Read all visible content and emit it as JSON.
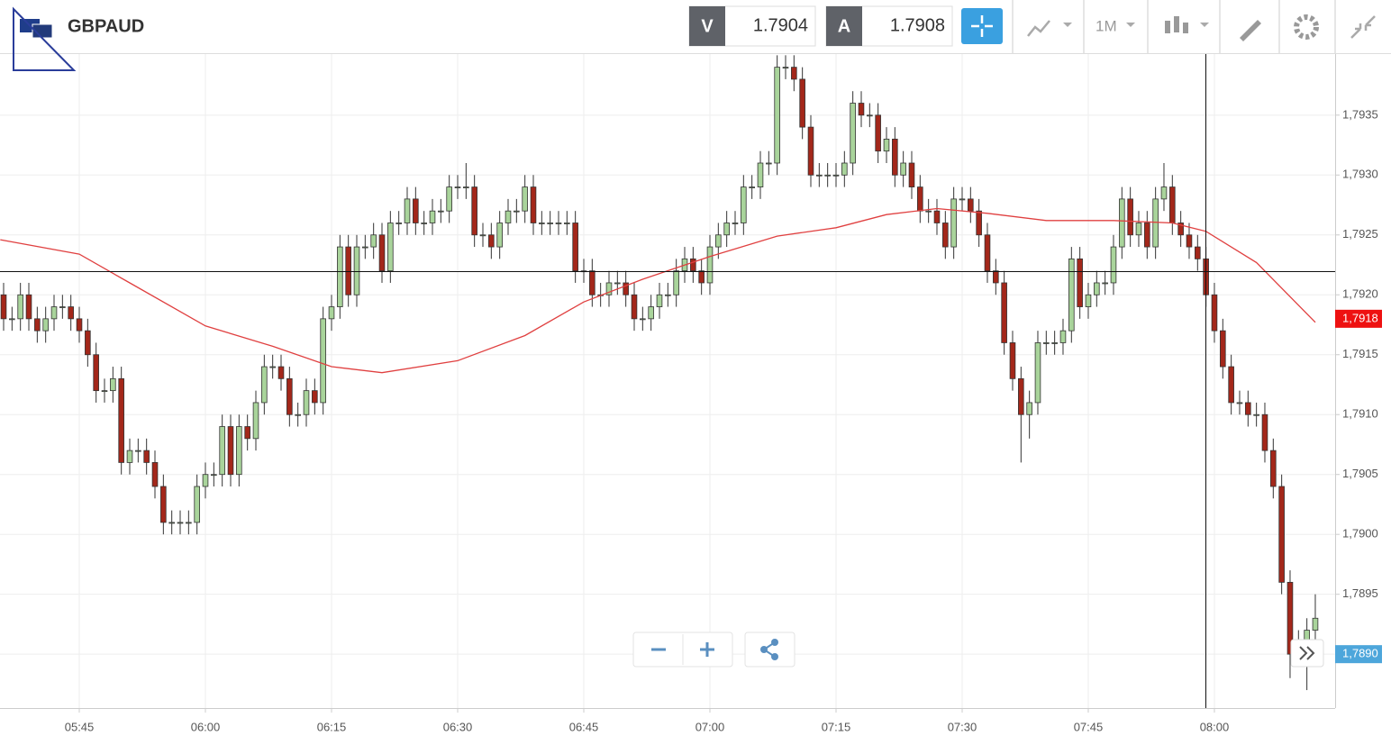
{
  "header": {
    "title": "GBPAUD",
    "bid_label": "V",
    "bid": "1.7904",
    "ask_label": "A",
    "ask": "1.7908",
    "interval": "1M"
  },
  "chart_data": {
    "type": "candlestick",
    "up_color": "#a9d49b",
    "down_color": "#a3271a",
    "xlim": [
      335.57,
      494.36
    ],
    "ylim": [
      1.78855,
      1.79401
    ],
    "grid": true,
    "xticks": [
      {
        "value": 345,
        "label": "05:45"
      },
      {
        "value": 360,
        "label": "06:00"
      },
      {
        "value": 375,
        "label": "06:15"
      },
      {
        "value": 390,
        "label": "06:30"
      },
      {
        "value": 405,
        "label": "06:45"
      },
      {
        "value": 420,
        "label": "07:00"
      },
      {
        "value": 435,
        "label": "07:15"
      },
      {
        "value": 450,
        "label": "07:30"
      },
      {
        "value": 465,
        "label": "07:45"
      },
      {
        "value": 480,
        "label": "08:00"
      }
    ],
    "yticks": [
      {
        "value": 1.7935,
        "label": "1,7935"
      },
      {
        "value": 1.793,
        "label": "1,7930"
      },
      {
        "value": 1.7925,
        "label": "1,7925"
      },
      {
        "value": 1.792,
        "label": "1,7920"
      },
      {
        "value": 1.7915,
        "label": "1,7915"
      },
      {
        "value": 1.791,
        "label": "1,7910"
      },
      {
        "value": 1.7905,
        "label": "1,7905"
      },
      {
        "value": 1.79,
        "label": "1,7900"
      },
      {
        "value": 1.7895,
        "label": "1,7895"
      },
      {
        "value": 1.789,
        "label": "1,7890"
      }
    ],
    "price_badges": [
      {
        "value": 1.7918,
        "label": "1,7918",
        "color": "#ee1111"
      },
      {
        "value": 1.789,
        "label": "1,7890",
        "color": "#4da6db"
      }
    ],
    "x": [
      336,
      337,
      338,
      339,
      340,
      341,
      342,
      343,
      344,
      345,
      346,
      347,
      348,
      349,
      350,
      351,
      352,
      353,
      354,
      355,
      356,
      357,
      358,
      359,
      360,
      361,
      362,
      363,
      364,
      365,
      366,
      367,
      368,
      369,
      370,
      371,
      372,
      373,
      374,
      375,
      376,
      377,
      378,
      379,
      380,
      381,
      382,
      383,
      384,
      385,
      386,
      387,
      388,
      389,
      390,
      391,
      392,
      393,
      394,
      395,
      396,
      397,
      398,
      399,
      400,
      401,
      402,
      403,
      404,
      405,
      406,
      407,
      408,
      409,
      410,
      411,
      412,
      413,
      414,
      415,
      416,
      417,
      418,
      419,
      420,
      421,
      422,
      423,
      424,
      425,
      426,
      427,
      428,
      429,
      430,
      431,
      432,
      433,
      434,
      435,
      436,
      437,
      438,
      439,
      440,
      441,
      442,
      443,
      444,
      445,
      446,
      447,
      448,
      449,
      450,
      451,
      452,
      453,
      454,
      455,
      456,
      457,
      458,
      459,
      460,
      461,
      462,
      463,
      464,
      465,
      466,
      467,
      468,
      469,
      470,
      471,
      472,
      473,
      474,
      475,
      476,
      477,
      478,
      479,
      480,
      481,
      482,
      483,
      484,
      485,
      486,
      487,
      488,
      489,
      490,
      491,
      492
    ],
    "open": [
      1.792,
      1.7918,
      1.7918,
      1.792,
      1.7918,
      1.7917,
      1.7918,
      1.7919,
      1.7919,
      1.7918,
      1.7917,
      1.7915,
      1.7912,
      1.7912,
      1.7913,
      1.7906,
      1.7907,
      1.7907,
      1.7906,
      1.7904,
      1.7901,
      1.7901,
      1.7901,
      1.7901,
      1.7904,
      1.7905,
      1.7905,
      1.7909,
      1.7905,
      1.7909,
      1.7908,
      1.7911,
      1.7914,
      1.7914,
      1.7913,
      1.791,
      1.791,
      1.7912,
      1.7911,
      1.7918,
      1.7919,
      1.7924,
      1.792,
      1.7924,
      1.7924,
      1.7925,
      1.7922,
      1.7926,
      1.7926,
      1.7928,
      1.7926,
      1.7926,
      1.7927,
      1.7927,
      1.7929,
      1.7929,
      1.7929,
      1.7925,
      1.7925,
      1.7924,
      1.7926,
      1.7927,
      1.7927,
      1.7929,
      1.7926,
      1.7926,
      1.7926,
      1.7926,
      1.7926,
      1.7922,
      1.7922,
      1.792,
      1.792,
      1.7921,
      1.7921,
      1.792,
      1.7918,
      1.7918,
      1.7919,
      1.792,
      1.792,
      1.7922,
      1.7923,
      1.7922,
      1.7921,
      1.7924,
      1.7925,
      1.7926,
      1.7926,
      1.7929,
      1.7929,
      1.7931,
      1.7931,
      1.7939,
      1.7939,
      1.7938,
      1.7934,
      1.793,
      1.793,
      1.793,
      1.793,
      1.7931,
      1.7936,
      1.7935,
      1.7935,
      1.7932,
      1.7933,
      1.793,
      1.7931,
      1.7929,
      1.7927,
      1.7927,
      1.7926,
      1.7924,
      1.7928,
      1.7928,
      1.7927,
      1.7925,
      1.7922,
      1.7921,
      1.7916,
      1.7913,
      1.791,
      1.7911,
      1.7916,
      1.7916,
      1.7916,
      1.7917,
      1.7923,
      1.7919,
      1.792,
      1.7921,
      1.7921,
      1.7924,
      1.7928,
      1.7925,
      1.7926,
      1.7924,
      1.7928,
      1.7929,
      1.7926,
      1.7925,
      1.7924,
      1.7923,
      1.792,
      1.7917,
      1.7914,
      1.7911,
      1.7911,
      1.791,
      1.791,
      1.7907,
      1.7904,
      1.7896,
      1.789,
      1.7891,
      1.7892
    ],
    "high": [
      1.7921,
      1.7919,
      1.7921,
      1.7921,
      1.7919,
      1.7919,
      1.792,
      1.792,
      1.792,
      1.7919,
      1.7918,
      1.7916,
      1.7913,
      1.7914,
      1.7914,
      1.7908,
      1.7908,
      1.7908,
      1.7907,
      1.7905,
      1.7902,
      1.7902,
      1.7902,
      1.7905,
      1.7906,
      1.7906,
      1.791,
      1.791,
      1.791,
      1.791,
      1.7912,
      1.7915,
      1.7915,
      1.7915,
      1.7914,
      1.7911,
      1.7913,
      1.7913,
      1.7919,
      1.792,
      1.7925,
      1.7925,
      1.7925,
      1.7925,
      1.7926,
      1.7926,
      1.7927,
      1.7927,
      1.7929,
      1.7929,
      1.7927,
      1.7928,
      1.7928,
      1.793,
      1.793,
      1.7931,
      1.793,
      1.7926,
      1.7926,
      1.7927,
      1.7928,
      1.7928,
      1.793,
      1.793,
      1.7927,
      1.7927,
      1.7927,
      1.7927,
      1.7927,
      1.7923,
      1.7923,
      1.7921,
      1.7922,
      1.7922,
      1.7922,
      1.7921,
      1.7919,
      1.792,
      1.7921,
      1.7921,
      1.7923,
      1.7924,
      1.7924,
      1.7923,
      1.7925,
      1.7926,
      1.7927,
      1.7927,
      1.793,
      1.793,
      1.7932,
      1.7932,
      1.794,
      1.794,
      1.794,
      1.7939,
      1.7935,
      1.7931,
      1.7931,
      1.7931,
      1.7932,
      1.7937,
      1.7937,
      1.7936,
      1.7936,
      1.7934,
      1.7934,
      1.7932,
      1.7932,
      1.793,
      1.7928,
      1.7928,
      1.7927,
      1.7929,
      1.7929,
      1.7929,
      1.7928,
      1.7926,
      1.7923,
      1.7922,
      1.7917,
      1.7914,
      1.7912,
      1.7917,
      1.7917,
      1.7917,
      1.7918,
      1.7924,
      1.7924,
      1.7921,
      1.7922,
      1.7922,
      1.7925,
      1.7929,
      1.7929,
      1.7927,
      1.7927,
      1.7929,
      1.7931,
      1.793,
      1.7927,
      1.7926,
      1.7925,
      1.7924,
      1.7921,
      1.7918,
      1.7915,
      1.7912,
      1.7912,
      1.7911,
      1.7911,
      1.7908,
      1.7905,
      1.7897,
      1.7892,
      1.7893,
      1.7895
    ],
    "low": [
      1.7917,
      1.7917,
      1.7917,
      1.7917,
      1.7916,
      1.7916,
      1.7917,
      1.7918,
      1.7917,
      1.7916,
      1.7914,
      1.7911,
      1.7911,
      1.7911,
      1.7905,
      1.7905,
      1.7906,
      1.7905,
      1.7903,
      1.79,
      1.79,
      1.79,
      1.79,
      1.79,
      1.7903,
      1.7904,
      1.7904,
      1.7904,
      1.7904,
      1.7907,
      1.7907,
      1.791,
      1.7913,
      1.7912,
      1.7909,
      1.7909,
      1.7909,
      1.791,
      1.791,
      1.7917,
      1.7918,
      1.7919,
      1.7919,
      1.7923,
      1.7923,
      1.7921,
      1.7921,
      1.7925,
      1.7925,
      1.7925,
      1.7925,
      1.7925,
      1.7926,
      1.7926,
      1.7928,
      1.7928,
      1.7924,
      1.7924,
      1.7923,
      1.7923,
      1.7925,
      1.7926,
      1.7926,
      1.7925,
      1.7925,
      1.7925,
      1.7925,
      1.7925,
      1.7921,
      1.7921,
      1.7919,
      1.7919,
      1.7919,
      1.792,
      1.7919,
      1.7917,
      1.7917,
      1.7917,
      1.7918,
      1.7919,
      1.7919,
      1.7921,
      1.7921,
      1.792,
      1.792,
      1.7923,
      1.7924,
      1.7925,
      1.7925,
      1.7928,
      1.7928,
      1.793,
      1.793,
      1.7938,
      1.7937,
      1.7933,
      1.7929,
      1.7929,
      1.7929,
      1.7929,
      1.7929,
      1.793,
      1.7934,
      1.7934,
      1.7931,
      1.7931,
      1.7929,
      1.7929,
      1.7928,
      1.7926,
      1.7926,
      1.7925,
      1.7923,
      1.7923,
      1.7927,
      1.7926,
      1.7924,
      1.7921,
      1.792,
      1.7915,
      1.7912,
      1.7906,
      1.7908,
      1.791,
      1.7915,
      1.7915,
      1.7915,
      1.7916,
      1.7918,
      1.7918,
      1.7919,
      1.792,
      1.792,
      1.7923,
      1.7924,
      1.7924,
      1.7923,
      1.7923,
      1.7927,
      1.7925,
      1.7924,
      1.7923,
      1.7922,
      1.7919,
      1.7916,
      1.7913,
      1.791,
      1.791,
      1.7909,
      1.7909,
      1.7906,
      1.7903,
      1.7895,
      1.7888,
      1.7889,
      1.7887,
      1.7891
    ],
    "close": [
      1.7918,
      1.7918,
      1.792,
      1.7918,
      1.7917,
      1.7918,
      1.7919,
      1.7919,
      1.7918,
      1.7917,
      1.7915,
      1.7912,
      1.7912,
      1.7913,
      1.7906,
      1.7907,
      1.7907,
      1.7906,
      1.7904,
      1.7901,
      1.7901,
      1.7901,
      1.7901,
      1.7904,
      1.7905,
      1.7905,
      1.7909,
      1.7905,
      1.7909,
      1.7908,
      1.7911,
      1.7914,
      1.7914,
      1.7913,
      1.791,
      1.791,
      1.7912,
      1.7911,
      1.7918,
      1.7919,
      1.7924,
      1.792,
      1.7924,
      1.7924,
      1.7925,
      1.7922,
      1.7926,
      1.7926,
      1.7928,
      1.7926,
      1.7926,
      1.7927,
      1.7927,
      1.7929,
      1.7929,
      1.7929,
      1.7925,
      1.7925,
      1.7924,
      1.7926,
      1.7927,
      1.7927,
      1.7929,
      1.7926,
      1.7926,
      1.7926,
      1.7926,
      1.7926,
      1.7922,
      1.7922,
      1.792,
      1.792,
      1.7921,
      1.7921,
      1.792,
      1.7918,
      1.7918,
      1.7919,
      1.792,
      1.792,
      1.7922,
      1.7923,
      1.7922,
      1.7921,
      1.7924,
      1.7925,
      1.7926,
      1.7926,
      1.7929,
      1.7929,
      1.7931,
      1.7931,
      1.7939,
      1.7939,
      1.7938,
      1.7934,
      1.793,
      1.793,
      1.793,
      1.793,
      1.7931,
      1.7936,
      1.7935,
      1.7935,
      1.7932,
      1.7933,
      1.793,
      1.7931,
      1.7929,
      1.7927,
      1.7927,
      1.7926,
      1.7924,
      1.7928,
      1.7928,
      1.7927,
      1.7925,
      1.7922,
      1.7921,
      1.7916,
      1.7913,
      1.791,
      1.7911,
      1.7916,
      1.7916,
      1.7916,
      1.7917,
      1.7923,
      1.7919,
      1.792,
      1.7921,
      1.7921,
      1.7924,
      1.7928,
      1.7925,
      1.7926,
      1.7924,
      1.7928,
      1.7929,
      1.7926,
      1.7925,
      1.7924,
      1.7923,
      1.792,
      1.7917,
      1.7914,
      1.7911,
      1.7911,
      1.791,
      1.791,
      1.7907,
      1.7904,
      1.7896,
      1.789,
      1.7891,
      1.7892,
      1.7893
    ],
    "ma": {
      "color": "#e04040",
      "x": [
        335.6,
        345,
        351,
        360,
        368,
        375,
        381,
        390,
        398,
        405,
        412,
        420,
        428,
        435,
        441,
        447,
        453,
        460,
        468,
        475,
        479,
        485,
        492
      ],
      "values": [
        1.79246,
        1.79234,
        1.7921,
        1.79174,
        1.79157,
        1.7914,
        1.79135,
        1.79145,
        1.79166,
        1.79194,
        1.79213,
        1.79232,
        1.79249,
        1.79256,
        1.79267,
        1.79272,
        1.79268,
        1.79262,
        1.79262,
        1.7926,
        1.79253,
        1.79227,
        1.79177
      ]
    }
  }
}
